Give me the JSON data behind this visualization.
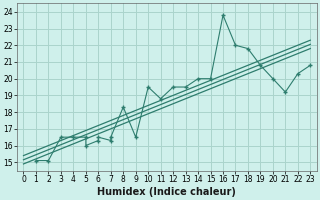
{
  "xlabel": "Humidex (Indice chaleur)",
  "bg_color": "#cff0eb",
  "grid_color": "#aad4cc",
  "line_color": "#2e7d6e",
  "scatter_x": [
    1,
    2,
    3,
    4,
    5,
    5,
    6,
    6,
    7,
    7,
    8,
    9,
    10,
    11,
    12,
    13,
    14,
    15,
    16,
    17,
    18,
    19,
    20,
    21,
    22,
    23
  ],
  "scatter_y": [
    15.1,
    15.1,
    16.5,
    16.5,
    16.5,
    16.0,
    16.3,
    16.5,
    16.3,
    16.5,
    18.3,
    16.5,
    19.5,
    18.8,
    19.5,
    19.5,
    20.0,
    20.0,
    23.8,
    22.0,
    21.8,
    20.8,
    20.0,
    19.2,
    20.3,
    20.8
  ],
  "reg_x_start": 0,
  "reg_x_end": 23,
  "xlim": [
    -0.5,
    23.5
  ],
  "ylim": [
    14.5,
    24.5
  ],
  "xticks": [
    0,
    1,
    2,
    3,
    4,
    5,
    6,
    7,
    8,
    9,
    10,
    11,
    12,
    13,
    14,
    15,
    16,
    17,
    18,
    19,
    20,
    21,
    22,
    23
  ],
  "yticks": [
    15,
    16,
    17,
    18,
    19,
    20,
    21,
    22,
    23,
    24
  ],
  "tick_fontsize": 5.5,
  "xlabel_fontsize": 7
}
